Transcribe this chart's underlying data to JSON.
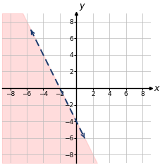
{
  "xlim": [
    -9,
    9
  ],
  "ylim": [
    -9,
    9
  ],
  "xticks": [
    -8,
    -6,
    -4,
    -2,
    2,
    4,
    6,
    8
  ],
  "yticks": [
    -8,
    -6,
    -4,
    -2,
    2,
    4,
    6,
    8
  ],
  "line_slope": -2,
  "line_intercept": -4,
  "line_color": "#1a3a6e",
  "shade_color": "#ffb3b3",
  "shade_alpha": 0.45,
  "grid_color": "#bbbbbb",
  "axis_color": "#000000",
  "x_label": "x",
  "y_label": "y",
  "tick_fontsize": 6.5,
  "label_fontsize": 9,
  "line_x_start": -5.5,
  "line_x_end": 1.0,
  "background_color": "#ffffff"
}
